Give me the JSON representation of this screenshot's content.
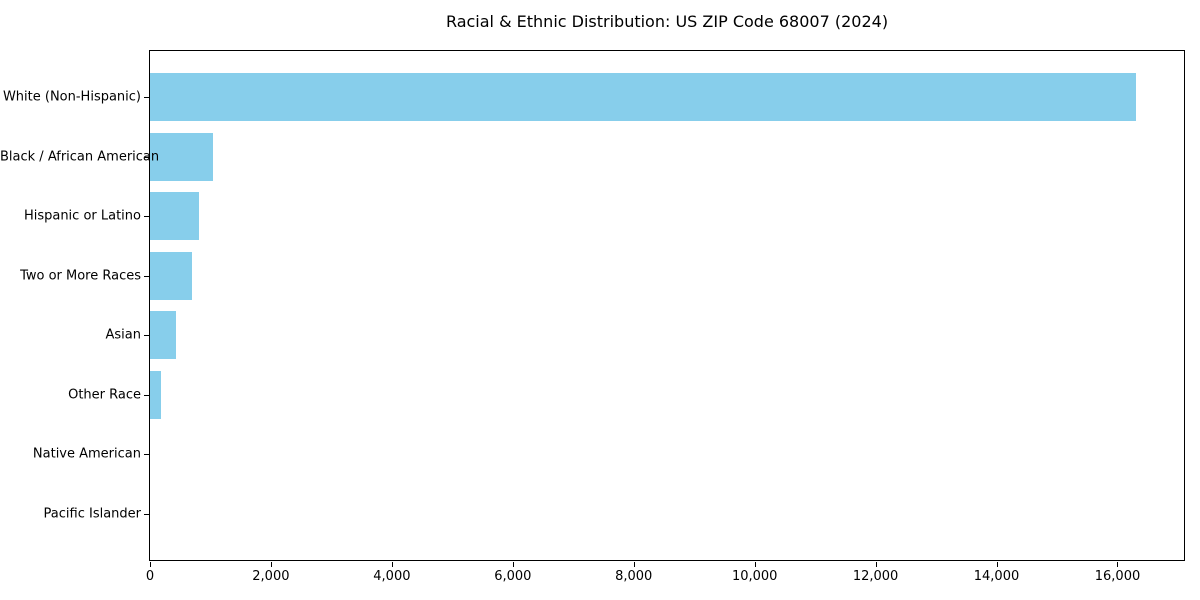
{
  "chart_data": {
    "type": "bar",
    "orientation": "horizontal",
    "title": "Racial & Ethnic Distribution: US ZIP Code 68007 (2024)",
    "categories": [
      "White (Non-Hispanic)",
      "Black / African American",
      "Hispanic or Latino",
      "Two or More Races",
      "Asian",
      "Other Race",
      "Native American",
      "Pacific Islander"
    ],
    "values": [
      16300,
      1040,
      815,
      690,
      430,
      180,
      0,
      0
    ],
    "xlabel": "",
    "ylabel": "",
    "xlim": [
      0,
      17100
    ],
    "x_ticks": [
      0,
      2000,
      4000,
      6000,
      8000,
      10000,
      12000,
      14000,
      16000
    ],
    "x_tick_labels": [
      "0",
      "2,000",
      "4,000",
      "6,000",
      "8,000",
      "10,000",
      "12,000",
      "14,000",
      "16,000"
    ],
    "bar_color": "#87CEEB",
    "axis_color": "#000000",
    "text_color": "#000000",
    "background_color": "#ffffff",
    "grid": false,
    "legend": false
  }
}
